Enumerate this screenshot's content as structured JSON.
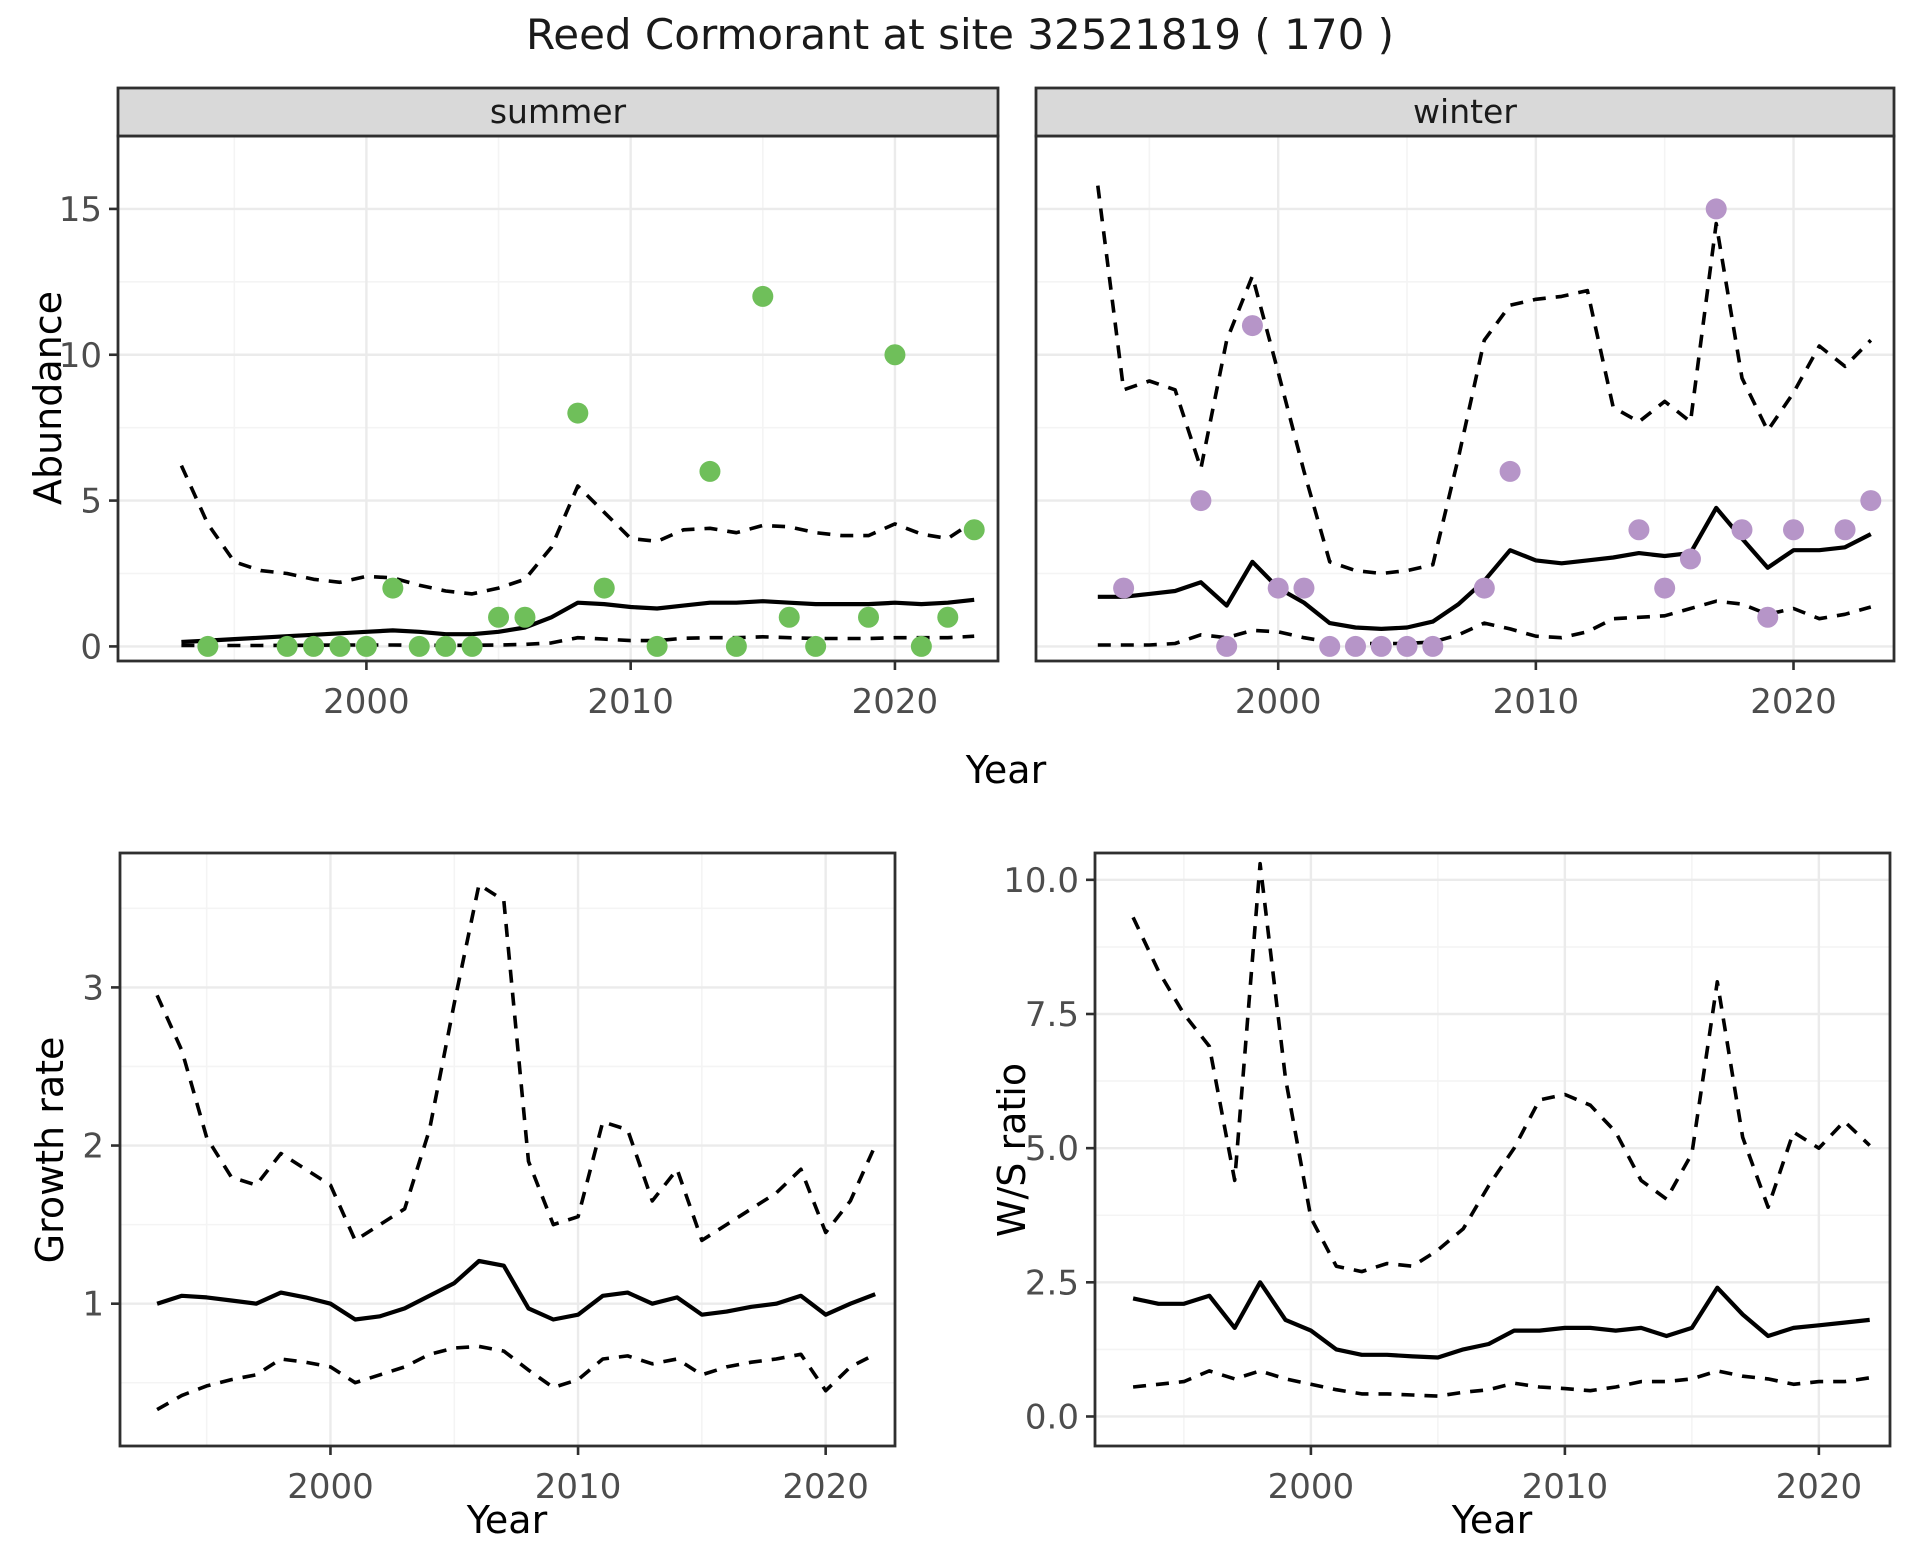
{
  "title": "Reed Cormorant at site 32521819 ( 170 )",
  "axis_titles": {
    "x": "Year",
    "y_abundance": "Abundance",
    "y_growth": "Growth rate",
    "y_ws": "W/S ratio"
  },
  "colors": {
    "summer_points": "#6FBF5A",
    "winter_points": "#B695C8",
    "line": "#000000",
    "strip_bg": "#D9D9D9",
    "strip_text": "#1a1a1a",
    "grid_major": "#EBEBEB",
    "grid_minor": "#F4F4F4",
    "tick_label": "#4D4D4D",
    "panel_border": "#2F2F2F",
    "panel_bg": "#FFFFFF"
  },
  "chart_data": [
    {
      "id": "abundance-summer",
      "type": "line",
      "facet_label": "summer",
      "xlabel": "Year",
      "ylabel": "Abundance",
      "xlim": [
        1990.6,
        2023.9
      ],
      "ylim": [
        -0.5,
        17.5
      ],
      "xticks": {
        "values": [
          2000,
          2010,
          2020
        ],
        "labels": [
          "2000",
          "2010",
          "2020"
        ]
      },
      "yticks": {
        "values": [
          0,
          5,
          10,
          15
        ],
        "labels": [
          "0",
          "5",
          "10",
          "15"
        ]
      },
      "xticks_minor": [
        1995,
        2005,
        2015
      ],
      "yticks_minor": [
        2.5,
        7.5,
        12.5
      ],
      "grid": true,
      "legend": "none",
      "years": [
        1993,
        1994,
        1995,
        1996,
        1997,
        1998,
        1999,
        2000,
        2001,
        2002,
        2003,
        2004,
        2005,
        2006,
        2007,
        2008,
        2009,
        2010,
        2011,
        2012,
        2013,
        2014,
        2015,
        2016,
        2017,
        2018,
        2019,
        2020,
        2021,
        2022,
        2023
      ],
      "series": [
        {
          "name": "fitted_mean",
          "style": "solid",
          "values": [
            0.15,
            0.2,
            0.25,
            0.3,
            0.35,
            0.4,
            0.45,
            0.5,
            0.55,
            0.5,
            0.42,
            0.42,
            0.5,
            0.65,
            1.0,
            1.5,
            1.45,
            1.35,
            1.3,
            1.4,
            1.5,
            1.5,
            1.55,
            1.5,
            1.45,
            1.45,
            1.45,
            1.5,
            1.45,
            1.5,
            1.6
          ]
        },
        {
          "name": "ci_upper",
          "style": "dashed",
          "values": [
            6.2,
            4.2,
            2.9,
            2.6,
            2.5,
            2.3,
            2.2,
            2.4,
            2.35,
            2.1,
            1.9,
            1.8,
            2.0,
            2.3,
            3.4,
            5.5,
            4.6,
            3.7,
            3.6,
            4.0,
            4.05,
            3.9,
            4.15,
            4.1,
            3.9,
            3.8,
            3.8,
            4.2,
            3.85,
            3.7,
            4.3
          ]
        },
        {
          "name": "ci_lower",
          "style": "dashed",
          "values": [
            0.03,
            0.03,
            0.03,
            0.03,
            0.04,
            0.04,
            0.05,
            0.05,
            0.05,
            0.04,
            0.04,
            0.04,
            0.05,
            0.07,
            0.12,
            0.3,
            0.25,
            0.2,
            0.2,
            0.28,
            0.3,
            0.3,
            0.33,
            0.3,
            0.27,
            0.27,
            0.27,
            0.3,
            0.3,
            0.3,
            0.35
          ]
        }
      ],
      "points": {
        "name": "observed_counts_summer",
        "color_key": "summer_points",
        "data": [
          [
            1994,
            0
          ],
          [
            1997,
            0
          ],
          [
            1998,
            0
          ],
          [
            1999,
            0
          ],
          [
            2000,
            0
          ],
          [
            2001,
            2
          ],
          [
            2002,
            0
          ],
          [
            2003,
            0
          ],
          [
            2004,
            0
          ],
          [
            2005,
            1
          ],
          [
            2006,
            1
          ],
          [
            2008,
            8
          ],
          [
            2009,
            2
          ],
          [
            2011,
            0
          ],
          [
            2013,
            6
          ],
          [
            2014,
            0
          ],
          [
            2015,
            12
          ],
          [
            2016,
            1
          ],
          [
            2017,
            0
          ],
          [
            2019,
            1
          ],
          [
            2020,
            10
          ],
          [
            2021,
            0
          ],
          [
            2022,
            1
          ],
          [
            2023,
            4
          ]
        ]
      }
    },
    {
      "id": "abundance-winter",
      "type": "line",
      "facet_label": "winter",
      "xlabel": "Year",
      "ylabel": "Abundance",
      "xlim": [
        1990.6,
        2023.9
      ],
      "ylim": [
        -0.5,
        17.5
      ],
      "xticks": {
        "values": [
          2000,
          2010,
          2020
        ],
        "labels": [
          "2000",
          "2010",
          "2020"
        ]
      },
      "yticks": {
        "values": [
          0,
          5,
          10,
          15
        ],
        "labels": [
          "0",
          "5",
          "10",
          "15"
        ]
      },
      "xticks_minor": [
        1995,
        2005,
        2015
      ],
      "yticks_minor": [
        2.5,
        7.5,
        12.5
      ],
      "grid": true,
      "legend": "none",
      "years": [
        1993,
        1994,
        1995,
        1996,
        1997,
        1998,
        1999,
        2000,
        2001,
        2002,
        2003,
        2004,
        2005,
        2006,
        2007,
        2008,
        2009,
        2010,
        2011,
        2012,
        2013,
        2014,
        2015,
        2016,
        2017,
        2018,
        2019,
        2020,
        2021,
        2022,
        2023
      ],
      "series": [
        {
          "name": "fitted_mean",
          "style": "solid",
          "values": [
            1.7,
            1.7,
            1.8,
            1.9,
            2.2,
            1.4,
            2.9,
            2.0,
            1.5,
            0.8,
            0.65,
            0.6,
            0.65,
            0.85,
            1.45,
            2.25,
            3.3,
            2.95,
            2.85,
            2.95,
            3.05,
            3.2,
            3.1,
            3.2,
            4.75,
            3.7,
            2.7,
            3.3,
            3.3,
            3.4,
            3.85
          ]
        },
        {
          "name": "ci_upper",
          "style": "dashed",
          "values": [
            15.8,
            8.8,
            9.1,
            8.8,
            6.1,
            10.5,
            12.7,
            9.4,
            6.0,
            2.9,
            2.6,
            2.5,
            2.6,
            2.8,
            6.5,
            10.5,
            11.7,
            11.9,
            12.0,
            12.2,
            8.2,
            7.7,
            8.4,
            7.7,
            14.5,
            9.2,
            7.4,
            8.7,
            10.3,
            9.6,
            10.5
          ]
        },
        {
          "name": "ci_lower",
          "style": "dashed",
          "values": [
            0.05,
            0.05,
            0.05,
            0.1,
            0.4,
            0.3,
            0.55,
            0.5,
            0.3,
            0.15,
            0.1,
            0.1,
            0.1,
            0.15,
            0.4,
            0.8,
            0.6,
            0.35,
            0.3,
            0.5,
            0.95,
            1.0,
            1.05,
            1.3,
            1.55,
            1.45,
            1.1,
            1.3,
            0.95,
            1.1,
            1.35
          ]
        }
      ],
      "points": {
        "name": "observed_counts_winter",
        "color_key": "winter_points",
        "data": [
          [
            1994,
            2
          ],
          [
            1997,
            5
          ],
          [
            1998,
            0
          ],
          [
            1999,
            11
          ],
          [
            2000,
            2
          ],
          [
            2001,
            2
          ],
          [
            2002,
            0
          ],
          [
            2003,
            0
          ],
          [
            2004,
            0
          ],
          [
            2005,
            0
          ],
          [
            2006,
            0
          ],
          [
            2008,
            2
          ],
          [
            2009,
            6
          ],
          [
            2014,
            4
          ],
          [
            2015,
            2
          ],
          [
            2016,
            3
          ],
          [
            2017,
            15
          ],
          [
            2018,
            4
          ],
          [
            2019,
            1
          ],
          [
            2020,
            4
          ],
          [
            2022,
            4
          ],
          [
            2023,
            5
          ]
        ]
      }
    },
    {
      "id": "growth-rate",
      "type": "line",
      "facet_label": "",
      "xlabel": "Year",
      "ylabel": "Growth rate",
      "xlim": [
        1991.5,
        2022.8
      ],
      "ylim": [
        0.1,
        3.85
      ],
      "xticks": {
        "values": [
          2000,
          2010,
          2020
        ],
        "labels": [
          "2000",
          "2010",
          "2020"
        ]
      },
      "yticks": {
        "values": [
          1,
          2,
          3
        ],
        "labels": [
          "1",
          "2",
          "3"
        ]
      },
      "xticks_minor": [
        1995,
        2005,
        2015
      ],
      "yticks_minor": [
        0.5,
        1.5,
        2.5,
        3.5
      ],
      "grid": true,
      "legend": "none",
      "years": [
        1993,
        1994,
        1995,
        1996,
        1997,
        1998,
        1999,
        2000,
        2001,
        2002,
        2003,
        2004,
        2005,
        2006,
        2007,
        2008,
        2009,
        2010,
        2011,
        2012,
        2013,
        2014,
        2015,
        2016,
        2017,
        2018,
        2019,
        2020,
        2021,
        2022
      ],
      "series": [
        {
          "name": "fitted_mean",
          "style": "solid",
          "values": [
            1.0,
            1.05,
            1.04,
            1.02,
            1.0,
            1.07,
            1.04,
            1.0,
            0.9,
            0.92,
            0.97,
            1.05,
            1.13,
            1.27,
            1.24,
            0.97,
            0.9,
            0.93,
            1.05,
            1.07,
            1.0,
            1.04,
            0.93,
            0.95,
            0.98,
            1.0,
            1.05,
            0.93,
            1.0,
            1.06
          ]
        },
        {
          "name": "ci_upper",
          "style": "dashed",
          "values": [
            2.95,
            2.6,
            2.05,
            1.8,
            1.75,
            1.95,
            1.85,
            1.75,
            1.4,
            1.5,
            1.6,
            2.1,
            2.9,
            3.65,
            3.55,
            1.9,
            1.5,
            1.55,
            2.15,
            2.1,
            1.65,
            1.85,
            1.4,
            1.5,
            1.6,
            1.7,
            1.85,
            1.45,
            1.65,
            2.0
          ]
        },
        {
          "name": "ci_lower",
          "style": "dashed",
          "values": [
            0.33,
            0.42,
            0.48,
            0.52,
            0.55,
            0.65,
            0.63,
            0.6,
            0.5,
            0.55,
            0.6,
            0.68,
            0.72,
            0.73,
            0.7,
            0.58,
            0.47,
            0.52,
            0.65,
            0.67,
            0.62,
            0.65,
            0.55,
            0.6,
            0.63,
            0.65,
            0.68,
            0.45,
            0.6,
            0.68
          ]
        }
      ],
      "points": null
    },
    {
      "id": "ws-ratio",
      "type": "line",
      "facet_label": "",
      "xlabel": "Year",
      "ylabel": "W/S ratio",
      "xlim": [
        1991.5,
        2022.8
      ],
      "ylim": [
        -0.55,
        10.5
      ],
      "xticks": {
        "values": [
          2000,
          2010,
          2020
        ],
        "labels": [
          "2000",
          "2010",
          "2020"
        ]
      },
      "yticks": {
        "values": [
          0,
          2.5,
          5,
          7.5,
          10
        ],
        "labels": [
          "0.0",
          "2.5",
          "5.0",
          "7.5",
          "10.0"
        ]
      },
      "xticks_minor": [
        1995,
        2005,
        2015
      ],
      "yticks_minor": [
        1.25,
        3.75,
        6.25,
        8.75
      ],
      "grid": true,
      "legend": "none",
      "years": [
        1993,
        1994,
        1995,
        1996,
        1997,
        1998,
        1999,
        2000,
        2001,
        2002,
        2003,
        2004,
        2005,
        2006,
        2007,
        2008,
        2009,
        2010,
        2011,
        2012,
        2013,
        2014,
        2015,
        2016,
        2017,
        2018,
        2019,
        2020,
        2021,
        2022
      ],
      "series": [
        {
          "name": "fitted_mean",
          "style": "solid",
          "values": [
            2.2,
            2.1,
            2.1,
            2.25,
            1.65,
            2.5,
            1.8,
            1.6,
            1.25,
            1.15,
            1.15,
            1.12,
            1.1,
            1.25,
            1.35,
            1.6,
            1.6,
            1.65,
            1.65,
            1.6,
            1.65,
            1.5,
            1.65,
            2.4,
            1.9,
            1.5,
            1.65,
            1.7,
            1.75,
            1.8
          ]
        },
        {
          "name": "ci_upper",
          "style": "dashed",
          "values": [
            9.3,
            8.3,
            7.5,
            6.9,
            4.4,
            10.3,
            6.3,
            3.7,
            2.8,
            2.7,
            2.85,
            2.8,
            3.1,
            3.5,
            4.3,
            5.0,
            5.9,
            6.0,
            5.8,
            5.3,
            4.4,
            4.05,
            4.9,
            8.1,
            5.2,
            3.9,
            5.3,
            5.0,
            5.5,
            5.05
          ]
        },
        {
          "name": "ci_lower",
          "style": "dashed",
          "values": [
            0.55,
            0.6,
            0.65,
            0.85,
            0.7,
            0.85,
            0.7,
            0.6,
            0.5,
            0.42,
            0.42,
            0.4,
            0.38,
            0.45,
            0.5,
            0.62,
            0.55,
            0.52,
            0.48,
            0.55,
            0.65,
            0.65,
            0.7,
            0.85,
            0.75,
            0.7,
            0.6,
            0.65,
            0.65,
            0.72
          ]
        }
      ],
      "points": null
    }
  ]
}
